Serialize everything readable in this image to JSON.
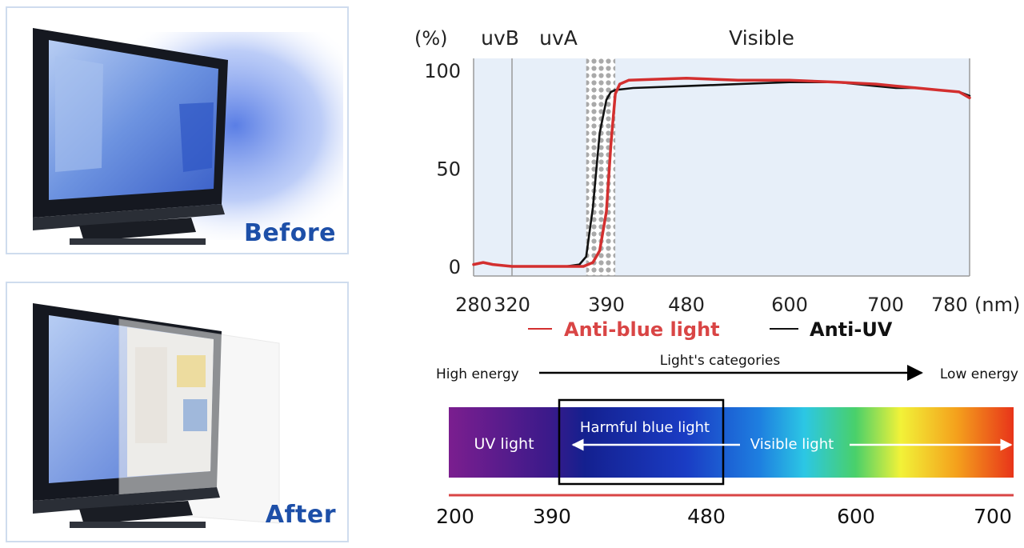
{
  "panels": {
    "before_label": "Before",
    "after_label": "After"
  },
  "chart_data": [
    {
      "type": "line",
      "ylabel": "(%)",
      "xlabel": "",
      "x_unit": "(nm)",
      "ylim": [
        0,
        100
      ],
      "y_ticks": [
        0,
        50,
        100
      ],
      "x_ticks": [
        "280",
        "320",
        "390",
        "480",
        "600",
        "700",
        "780"
      ],
      "x_tick_unit_suffix": "(nm)",
      "regions": [
        {
          "label": "uvB",
          "from": "280",
          "to": "320"
        },
        {
          "label": "uvA",
          "from": "320",
          "to": "390"
        },
        {
          "label": "Visible",
          "from": "390",
          "to": "780"
        }
      ],
      "highlight_band": {
        "from": 375,
        "to": 400,
        "pattern": "dots"
      },
      "legend_position": "bottom",
      "series": [
        {
          "name": "Anti-blue light",
          "color": "#d32f2f",
          "points": [
            [
              280,
              1
            ],
            [
              290,
              2
            ],
            [
              300,
              1
            ],
            [
              320,
              0
            ],
            [
              340,
              0
            ],
            [
              360,
              0
            ],
            [
              373,
              0
            ],
            [
              380,
              2
            ],
            [
              385,
              8
            ],
            [
              390,
              28
            ],
            [
              395,
              62
            ],
            [
              400,
              88
            ],
            [
              405,
              93
            ],
            [
              415,
              95
            ],
            [
              480,
              96
            ],
            [
              540,
              95
            ],
            [
              600,
              95
            ],
            [
              650,
              94
            ],
            [
              690,
              93
            ],
            [
              710,
              92
            ],
            [
              730,
              91
            ],
            [
              750,
              90
            ],
            [
              770,
              89
            ],
            [
              780,
              86
            ]
          ]
        },
        {
          "name": "Anti-UV",
          "color": "#111111",
          "points": [
            [
              280,
              1
            ],
            [
              290,
              2
            ],
            [
              300,
              1
            ],
            [
              320,
              0
            ],
            [
              340,
              0
            ],
            [
              360,
              0
            ],
            [
              370,
              1
            ],
            [
              375,
              5
            ],
            [
              380,
              30
            ],
            [
              385,
              68
            ],
            [
              390,
              85
            ],
            [
              395,
              89
            ],
            [
              400,
              90
            ],
            [
              420,
              91
            ],
            [
              480,
              92
            ],
            [
              540,
              93
            ],
            [
              600,
              94
            ],
            [
              650,
              94
            ],
            [
              690,
              92
            ],
            [
              710,
              91
            ],
            [
              730,
              91
            ],
            [
              750,
              90
            ],
            [
              770,
              89
            ],
            [
              780,
              87
            ]
          ]
        }
      ]
    },
    {
      "type": "spectrum-band",
      "title": "Light's categories",
      "left_label": "High energy",
      "right_label": "Low energy",
      "tick_labels": [
        "200",
        "390",
        "480",
        "600",
        "700"
      ],
      "regions": [
        {
          "label": "UV light",
          "from": 200,
          "to": 390
        },
        {
          "label": "Harmful blue light",
          "from": 390,
          "to": 480
        },
        {
          "label": "Visible light",
          "from": 390,
          "to": 700
        }
      ],
      "gradient_colors": [
        "#7b1e8f",
        "#3a1a8a",
        "#14208f",
        "#1a3cc4",
        "#1e7fe0",
        "#2cc7e4",
        "#49d06a",
        "#f2f238",
        "#f4a01c",
        "#e8341a"
      ]
    }
  ]
}
